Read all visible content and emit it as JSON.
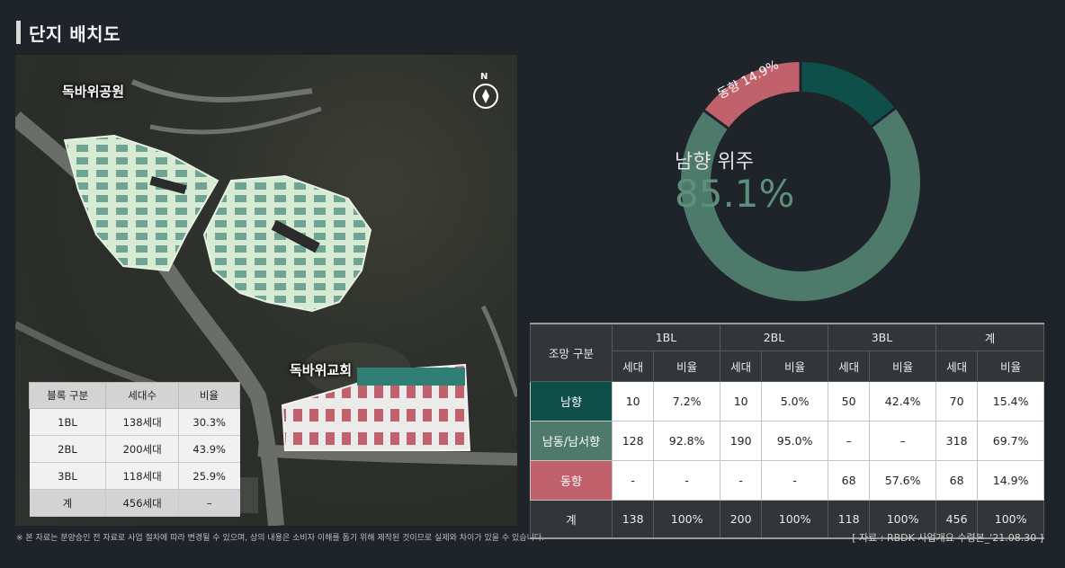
{
  "page": {
    "title": "단지 배치도"
  },
  "map": {
    "labels": {
      "park": "독바위공원",
      "church": "독바위교회"
    },
    "compass": "N",
    "block_table": {
      "headers": [
        "블록 구분",
        "세대수",
        "비율"
      ],
      "rows": [
        [
          "1BL",
          "138세대",
          "30.3%"
        ],
        [
          "2BL",
          "200세대",
          "43.9%"
        ],
        [
          "3BL",
          "118세대",
          "25.9%"
        ]
      ],
      "total": [
        "계",
        "456세대",
        "–"
      ]
    }
  },
  "donut": {
    "center_label": "남향 위주",
    "center_value": "85.1%",
    "slice_label": "동향 14.9%",
    "values": {
      "south_pct": 85.1,
      "east_pct": 14.9
    },
    "colors": {
      "south_main": "#4d7a6b",
      "south_dark": "#0e4f4a",
      "east": "#c0616b"
    }
  },
  "main_table": {
    "corner": "조망 구분",
    "groups": [
      "1BL",
      "2BL",
      "3BL",
      "계"
    ],
    "sub": [
      "세대",
      "비율"
    ],
    "rows": [
      {
        "label": "남향",
        "color": "#0e4f4a",
        "cells": [
          "10",
          "7.2%",
          "10",
          "5.0%",
          "50",
          "42.4%",
          "70",
          "15.4%"
        ]
      },
      {
        "label": "남동/남서향",
        "color": "#4d7a6b",
        "cells": [
          "128",
          "92.8%",
          "190",
          "95.0%",
          "–",
          "–",
          "318",
          "69.7%"
        ]
      },
      {
        "label": "동향",
        "color": "#c0616b",
        "cells": [
          "-",
          "-",
          "-",
          "-",
          "68",
          "57.6%",
          "68",
          "14.9%"
        ]
      }
    ],
    "total": {
      "label": "계",
      "cells": [
        "138",
        "100%",
        "200",
        "100%",
        "118",
        "100%",
        "456",
        "100%"
      ]
    }
  },
  "footnote": "※ 본 자료는 분양승인 전 자료로 사업 절차에 따라 변경될 수 있으며, 상의 내용은 소비자 이해를 돕기 위해 제작된 것이므로 실제와 차이가 있을 수 있습니다.",
  "source": "[ 자료 : RBDK 사업개요 수령본_'21.08.30 ]"
}
